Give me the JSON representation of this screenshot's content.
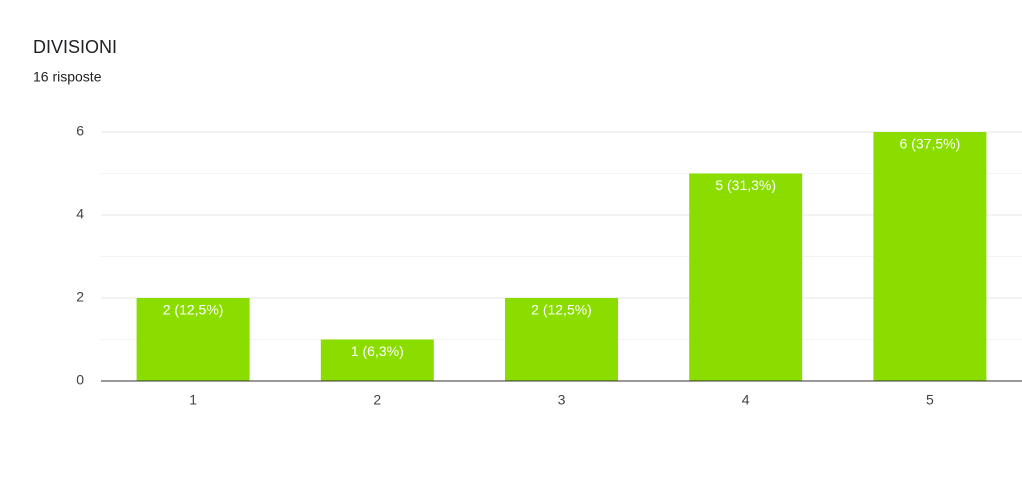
{
  "chart_data": {
    "type": "bar",
    "title": "DIVISIONI",
    "subtitle": "16 risposte",
    "categories": [
      "1",
      "2",
      "3",
      "4",
      "5"
    ],
    "values": [
      2,
      1,
      2,
      5,
      6
    ],
    "value_labels": [
      "2 (12,5%)",
      "1 (6,3%)",
      "2 (12,5%)",
      "5 (31,3%)",
      "6 (37,5%)"
    ],
    "color": "#8bdd00",
    "ylim": [
      0,
      6
    ],
    "yticks": [
      0,
      2,
      4,
      6
    ],
    "yminorticks": [
      1,
      3,
      5
    ],
    "grid": true
  }
}
